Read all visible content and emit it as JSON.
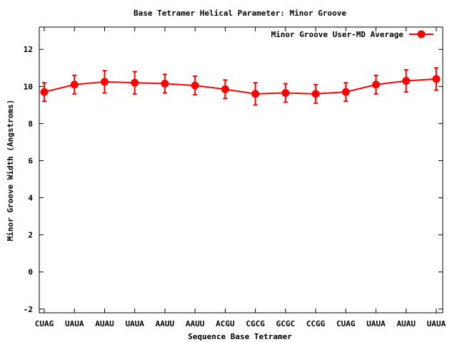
{
  "chart_data": {
    "type": "line",
    "title": "Base Tetramer Helical Parameter: Minor Groove",
    "xlabel": "Sequence Base Tetramer",
    "ylabel": "Minor Groove Width (Angstroms)",
    "categories": [
      "CUAG",
      "UAUA",
      "AUAU",
      "UAUA",
      "AAUU",
      "AAUU",
      "ACGU",
      "CGCG",
      "GCGC",
      "CCGG",
      "CUAG",
      "UAUA",
      "AUAU",
      "UAUA"
    ],
    "ylim": [
      -2.2,
      13.2
    ],
    "yticks": [
      -2,
      0,
      2,
      4,
      6,
      8,
      10,
      12
    ],
    "grid": false,
    "legend_position": "top-right",
    "series": [
      {
        "name": "Minor Groove User-MD Average",
        "color": "#ff0000",
        "values": [
          9.7,
          10.1,
          10.25,
          10.2,
          10.15,
          10.05,
          9.85,
          9.6,
          9.65,
          9.6,
          9.7,
          10.1,
          10.3,
          10.4
        ],
        "errors": [
          0.5,
          0.5,
          0.6,
          0.6,
          0.5,
          0.5,
          0.5,
          0.6,
          0.5,
          0.5,
          0.5,
          0.5,
          0.6,
          0.6
        ]
      }
    ]
  }
}
